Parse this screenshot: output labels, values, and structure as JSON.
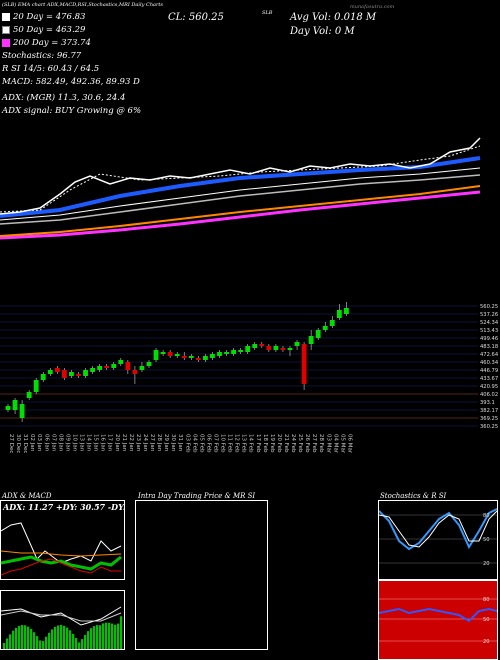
{
  "header": {
    "source_line": "(SLB) EMA chart  ADX,MACD,RSI,Stochastics,MRI  Daily Charts",
    "close_label": "CL: 560.25",
    "avg_vol_label": "Avg Vol: 0.018 M",
    "day_vol_label": "Day Vol: 0   M",
    "symbol": "SLB",
    "website": "munafasutra.com"
  },
  "indicators": {
    "dma20": "20 Day = 476.83",
    "dma50": "50 Day = 463.29",
    "dma200": "200 Day = 373.74",
    "stochastics": "Stochastics: 96.77",
    "rsi_line": "R        SI 14/5: 60.43 / 64.5",
    "macd_line": "MACD: 582.49, 492.36, 89.93 D",
    "adx_line": "ADX:               (MGR) 11.3, 30.6, 24.4",
    "adx_signal_line": "ADX  signal:                   BUY Growing @ 6%"
  },
  "colors": {
    "up": "#00e000",
    "down": "#e00000",
    "ema20": "#ffffff",
    "ema50": "#1e5bff",
    "ema100": "#bbbbbb",
    "ema200": "#ff8800",
    "ema_long": "#ff33ff",
    "panel_border": "#ffffff",
    "stoch_line": "#3399ff",
    "rsi_bg": "#cc0000",
    "adx_green": "#00c000"
  },
  "price_axis_labels": [
    "560.25",
    "537.26",
    "524.34",
    "513.43",
    "499.46",
    "483.18",
    "472.64",
    "460.34",
    "446.79",
    "433.67",
    "420.95",
    "406.02",
    "393.1",
    "382.17",
    "369.25",
    "360.25"
  ],
  "dates": [
    "27 Dec",
    "30 Dec",
    "31 Dec",
    "02 Jan",
    "03 Jan",
    "06 Jan",
    "07 Jan",
    "08 Jan",
    "09 Jan",
    "10 Jan",
    "13 Jan",
    "14 Jan",
    "15 Jan",
    "16 Jan",
    "17 Jan",
    "20 Jan",
    "21 Jan",
    "22 Jan",
    "23 Jan",
    "24 Jan",
    "27 Jan",
    "28 Jan",
    "29 Jan",
    "30 Jan",
    "31 Jan",
    "03 Feb",
    "04 Feb",
    "05 Feb",
    "06 Feb",
    "07 Feb",
    "10 Feb",
    "11 Feb",
    "12 Feb",
    "13 Feb",
    "14 Feb",
    "17 Feb",
    "18 Feb",
    "19 Feb",
    "20 Feb",
    "21 Feb",
    "24 Feb",
    "25 Feb",
    "26 Feb",
    "27 Feb",
    "28 Feb",
    "03 Mar",
    "04 Mar",
    "05 Mar",
    "06 Mar"
  ],
  "panels": {
    "adx_macd": {
      "title": "ADX  & MACD",
      "adx_text": "ADX: 11.27 +DY: 30.57 -DY: 24.37"
    },
    "intraday": {
      "title": "Intra  Day Trading Price  & MR                  SI"
    },
    "stoch_rsi": {
      "title": "Stochastics & R                  SI",
      "stoch_ticks": [
        "80",
        "50",
        "20"
      ],
      "rsi_ticks": [
        "80",
        "50",
        "20"
      ]
    }
  }
}
